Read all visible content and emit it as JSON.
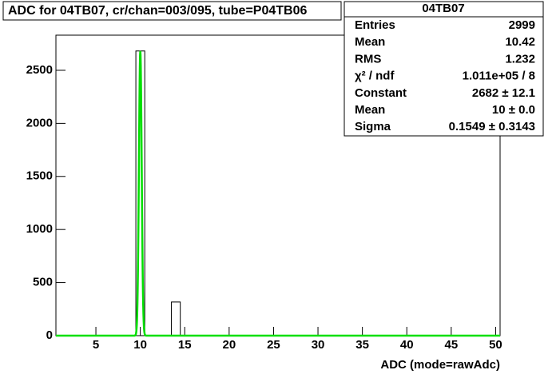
{
  "chart_data": {
    "type": "histogram",
    "title": "ADC for 04TB07,  cr/chan=003/095,  tube=P04TB06",
    "x_label": "ADC (mode=rawAdc)",
    "bins": [
      0.5,
      1.5,
      2.5,
      3.5,
      4.5,
      5.5,
      6.5,
      7.5,
      8.5,
      9.5,
      10.5,
      11.5,
      12.5,
      13.5,
      14.5,
      15.5,
      16.5,
      17.5,
      18.5,
      19.5,
      20.5,
      21.5,
      22.5,
      23.5,
      24.5,
      25.5,
      26.5,
      27.5,
      28.5,
      29.5,
      30.5,
      31.5,
      32.5,
      33.5,
      34.5,
      35.5,
      36.5,
      37.5,
      38.5,
      39.5,
      40.5,
      41.5,
      42.5,
      43.5,
      44.5,
      45.5,
      46.5,
      47.5,
      48.5,
      49.5,
      50.5
    ],
    "counts": [
      0,
      0,
      0,
      0,
      0,
      0,
      0,
      0,
      0,
      2682,
      0,
      0,
      0,
      317,
      0,
      0,
      0,
      0,
      0,
      0,
      0,
      0,
      0,
      0,
      0,
      0,
      0,
      0,
      0,
      0,
      0,
      0,
      0,
      0,
      0,
      0,
      0,
      0,
      0,
      0,
      0,
      0,
      0,
      0,
      0,
      0,
      0,
      0,
      0,
      0
    ],
    "color": "#000000",
    "fit_color": "#00e000",
    "xlim": [
      0.5,
      50.5
    ],
    "ylim": [
      0,
      2831
    ],
    "xticks": [
      5,
      10,
      15,
      20,
      25,
      30,
      35,
      40,
      45,
      50
    ],
    "yticks": [
      0,
      500,
      1000,
      1500,
      2000,
      2500
    ],
    "stats": {
      "title": "04TB07",
      "rows": [
        {
          "label": "Entries",
          "value": "2999"
        },
        {
          "label": "Mean",
          "value": "10.42"
        },
        {
          "label": "RMS",
          "value": "1.232"
        },
        {
          "label": "χ² / ndf",
          "value": "1.011e+05 / 8"
        },
        {
          "label": "Constant",
          "value": "2682 ± 12.1"
        },
        {
          "label": "Mean",
          "value": "10 ± 0.0"
        },
        {
          "label": "Sigma",
          "value": "0.1549 ± 0.3143"
        }
      ]
    }
  }
}
